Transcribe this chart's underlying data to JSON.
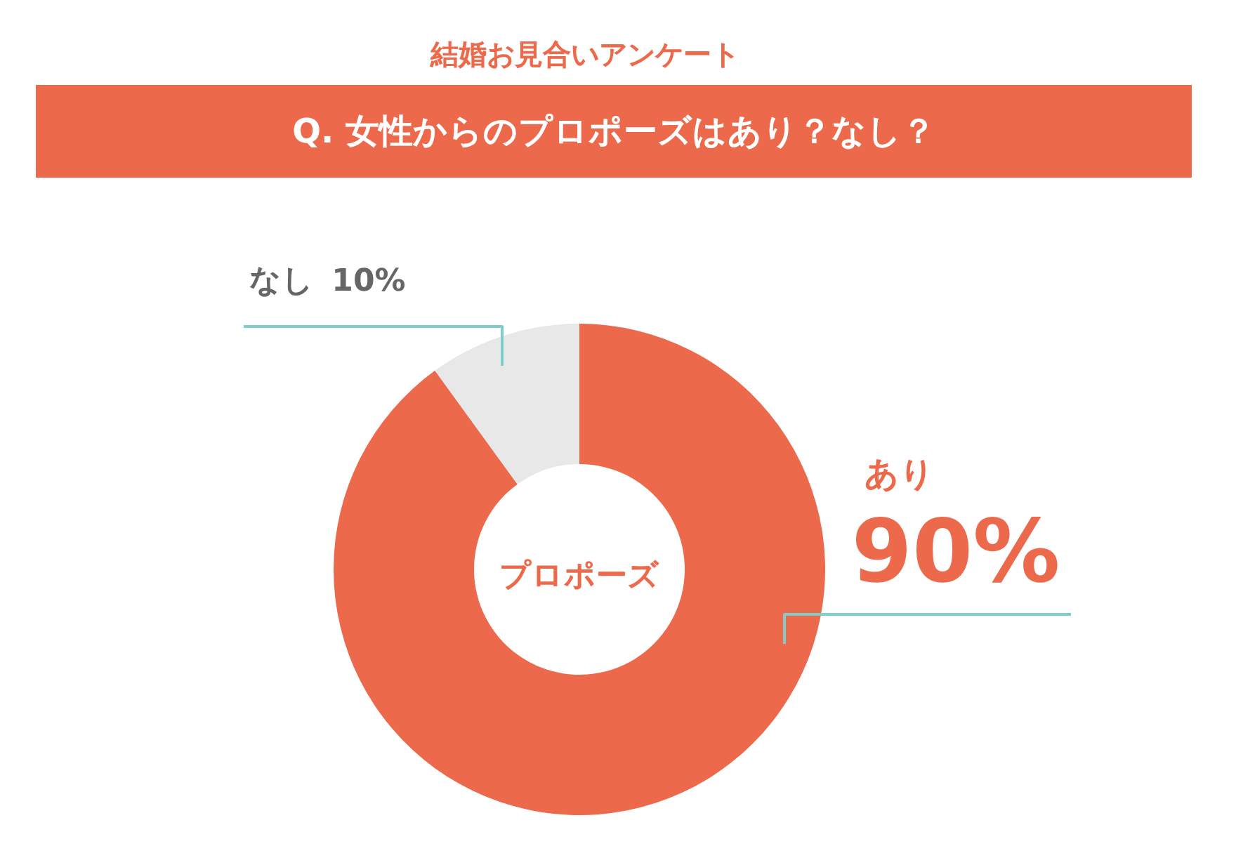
{
  "chart_data": {
    "type": "donut",
    "title": "結婚お見合いアンケート",
    "subtitle": "Q. 女性からのプロポーズはあり？なし？",
    "categories": [
      "あり",
      "なし"
    ],
    "values": [
      90,
      10
    ],
    "colors": [
      "#ec6a4b",
      "#e8e8e8"
    ],
    "value_labels": [
      "90%",
      "10%"
    ],
    "annotations": [
      "プロポーズ"
    ]
  }
}
